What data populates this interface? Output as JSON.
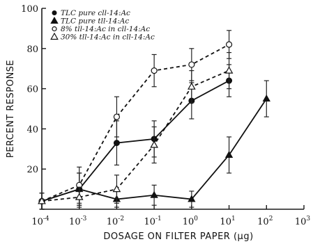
{
  "chart_data": {
    "type": "line",
    "title": "",
    "xlabel": "DOSAGE ON FILTER PAPER (μg)",
    "ylabel": "PERCENT RESPONSE",
    "xscale": "log",
    "xlim": [
      0.0001,
      1000
    ],
    "ylim": [
      0,
      100
    ],
    "x_ticks": [
      {
        "base": "10",
        "exp": "-4",
        "value": 0.0001
      },
      {
        "base": "10",
        "exp": "-3",
        "value": 0.001
      },
      {
        "base": "10",
        "exp": "-2",
        "value": 0.01
      },
      {
        "base": "10",
        "exp": "-1",
        "value": 0.1
      },
      {
        "base": "10",
        "exp": "0",
        "value": 1
      },
      {
        "base": "10",
        "exp": "1",
        "value": 10
      },
      {
        "base": "10",
        "exp": "2",
        "value": 100
      },
      {
        "base": "10",
        "exp": "3",
        "value": 1000
      }
    ],
    "y_ticks": [
      "20",
      "40",
      "60",
      "80",
      "100"
    ],
    "grid": false,
    "legend_position": "top-left",
    "series": [
      {
        "name": "TLC pure cll-14:Ac",
        "marker": "filled-circle",
        "line": "solid",
        "x": [
          0.0001,
          0.001,
          0.01,
          0.1,
          1,
          10
        ],
        "y": [
          4,
          10,
          33,
          35,
          54,
          64
        ],
        "err": [
          4,
          8,
          11,
          9,
          9,
          8
        ]
      },
      {
        "name": "TLC pure tll-14:Ac",
        "marker": "filled-triangle",
        "line": "solid",
        "x": [
          0.0001,
          0.001,
          0.01,
          0.1,
          1,
          10,
          100
        ],
        "y": [
          4,
          10,
          5,
          7,
          5,
          27,
          55
        ],
        "err": [
          4,
          8,
          4,
          5,
          4,
          9,
          9
        ]
      },
      {
        "name": "8% tll-14:Ac in cll-14:Ac",
        "marker": "open-circle",
        "line": "dashed",
        "x": [
          0.0001,
          0.001,
          0.01,
          0.1,
          1,
          10
        ],
        "y": [
          4,
          12,
          46,
          69,
          72,
          82
        ],
        "err": [
          4,
          9,
          10,
          8,
          8,
          7
        ]
      },
      {
        "name": "30% tll-14:Ac in cll-14:Ac",
        "marker": "open-triangle",
        "line": "dashed",
        "x": [
          0.0001,
          0.001,
          0.01,
          0.1,
          1,
          10
        ],
        "y": [
          4,
          6,
          10,
          32,
          61,
          69
        ],
        "err": [
          4,
          5,
          7,
          9,
          8,
          9
        ]
      }
    ]
  }
}
